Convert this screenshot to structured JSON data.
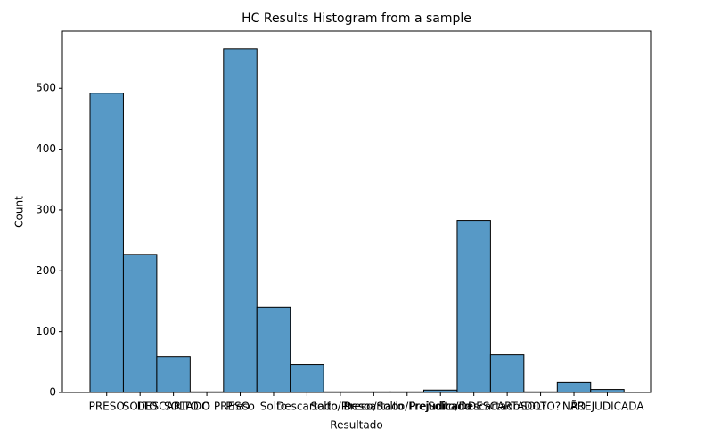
{
  "chart_data": {
    "type": "bar",
    "title": "HC Results Histogram from a sample",
    "xlabel": "Resultado",
    "ylabel": "Count",
    "categories": [
      "PRESO",
      "SOLTO",
      "DESCARTADO",
      "SOLTO O PRESO",
      "Preso",
      "Solto",
      "Descartado",
      "Solto/Preso",
      "Preso/Solto",
      "Descartado/Prejudicado",
      "Prejudicado",
      "Solto/Descartado",
      "DESCARTADO?",
      "SOLTO?",
      "NÃO",
      "PREJUDICADA"
    ],
    "values": [
      492,
      227,
      59,
      1,
      565,
      140,
      46,
      1,
      1,
      1,
      4,
      283,
      62,
      1,
      17,
      5
    ],
    "color": "#5799c6",
    "ylim": [
      0,
      594
    ],
    "yticks": [
      0,
      100,
      200,
      300,
      400,
      500
    ]
  }
}
